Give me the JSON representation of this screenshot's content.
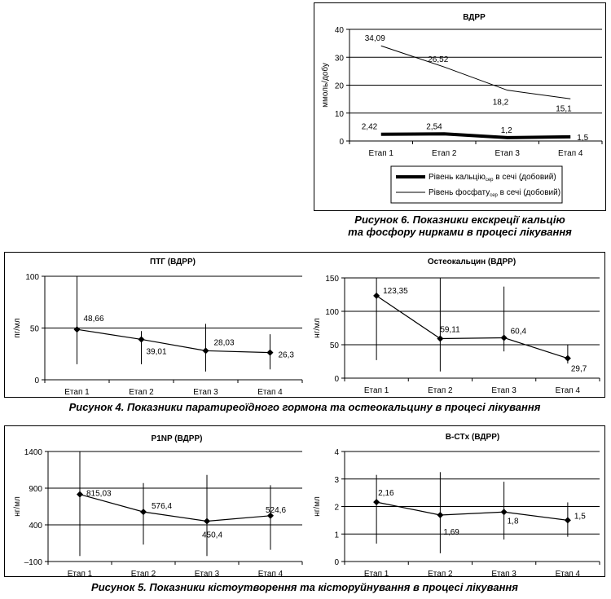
{
  "captions": {
    "fig6_line1": "Рисунок 6. Показники екскреції кальцію",
    "fig6_line2": "та фосфору нирками в процесі лікування",
    "fig4": "Рисунок 4. Показники паратиреоїдного гормона та остеокальцину в процесі лікування",
    "fig5": "Рисунок 5. Показники кістоутворення та кісторуйнування в процесі лікування"
  },
  "legend": {
    "calcium_prefix": "Рівень кальцію",
    "phosphate_prefix": "Рівень фосфату",
    "subscript": "сер",
    "suffix": " в сечі (добовий)"
  },
  "chart_data": [
    {
      "id": "vdrr-excretion",
      "type": "line",
      "title": "ВДРР",
      "ylabel": "ммоль/добу",
      "xlabel": "",
      "categories": [
        "Етап 1",
        "Етап 2",
        "Етап 3",
        "Етап 4"
      ],
      "ylim": [
        0,
        40
      ],
      "yticks": [
        0,
        10,
        20,
        30,
        40
      ],
      "grid": true,
      "legend_position": "bottom",
      "series": [
        {
          "name": "Рівень кальцію сер в сечі (добовий)",
          "values": [
            2.42,
            2.54,
            1.2,
            1.5
          ],
          "labels": [
            "2,42",
            "2,54",
            "1,2",
            "1,5"
          ],
          "weight": "thick"
        },
        {
          "name": "Рівень фосфату сер в сечі (добовий)",
          "values": [
            34.09,
            26.52,
            18.2,
            15.1
          ],
          "labels": [
            "34,09",
            "26,52",
            "18,2",
            "15,1"
          ],
          "weight": "thin"
        }
      ]
    },
    {
      "id": "ptg",
      "type": "line",
      "title": "ПТГ (ВДРР)",
      "ylabel": "пг/мл",
      "categories": [
        "Етап 1",
        "Етап 2",
        "Етап 3",
        "Етап 4"
      ],
      "ylim": [
        0,
        100
      ],
      "yticks": [
        0,
        50,
        100
      ],
      "grid": true,
      "series": [
        {
          "values": [
            48.66,
            39.01,
            28.03,
            26.3
          ],
          "labels": [
            "48,66",
            "39,01",
            "28,03",
            "26,3"
          ],
          "error_low": [
            15,
            15,
            8,
            10
          ],
          "error_high": [
            103,
            47,
            54,
            44
          ]
        }
      ]
    },
    {
      "id": "osteocalcin",
      "type": "line",
      "title": "Остеокальцин (ВДРР)",
      "ylabel": "нг/мл",
      "categories": [
        "Етап 1",
        "Етап 2",
        "Етап 3",
        "Етап 4"
      ],
      "ylim": [
        0,
        150
      ],
      "yticks": [
        0,
        50,
        100,
        150
      ],
      "grid": true,
      "series": [
        {
          "values": [
            123.35,
            59.11,
            60.4,
            29.7
          ],
          "labels": [
            "123,35",
            "59,11",
            "60,4",
            "29,7"
          ],
          "error_low": [
            27,
            10,
            40,
            22
          ],
          "error_high": [
            150,
            150,
            137,
            50
          ]
        }
      ]
    },
    {
      "id": "p1np",
      "type": "line",
      "title": "P1NP (ВДРР)",
      "ylabel": "нг/мл",
      "categories": [
        "Етап 1",
        "Етап 2",
        "Етап 3",
        "Етап 4"
      ],
      "ylim": [
        -100,
        1400
      ],
      "yticks": [
        -100,
        400,
        900,
        1400
      ],
      "ytick_labels": [
        "–100",
        "400",
        "900",
        "1400"
      ],
      "grid": true,
      "series": [
        {
          "values": [
            815.03,
            576.4,
            450.4,
            524.6
          ],
          "labels": [
            "815,03",
            "576,4",
            "450,4",
            "524,6"
          ],
          "error_low": [
            -25,
            130,
            -25,
            60
          ],
          "error_high": [
            1400,
            970,
            1080,
            940
          ]
        }
      ]
    },
    {
      "id": "bctx",
      "type": "line",
      "title": "B-CTx (ВДРР)",
      "ylabel": "нг/мл",
      "categories": [
        "Етап 1",
        "Етап 2",
        "Етап 3",
        "Етап 4"
      ],
      "ylim": [
        0,
        4
      ],
      "yticks": [
        0,
        1,
        2,
        3,
        4
      ],
      "grid": true,
      "series": [
        {
          "values": [
            2.16,
            1.69,
            1.8,
            1.5
          ],
          "labels": [
            "2,16",
            "1,69",
            "1,8",
            "1,5"
          ],
          "error_low": [
            0.65,
            0.3,
            0.8,
            0.9
          ],
          "error_high": [
            3.15,
            3.25,
            2.9,
            2.15
          ]
        }
      ]
    }
  ]
}
